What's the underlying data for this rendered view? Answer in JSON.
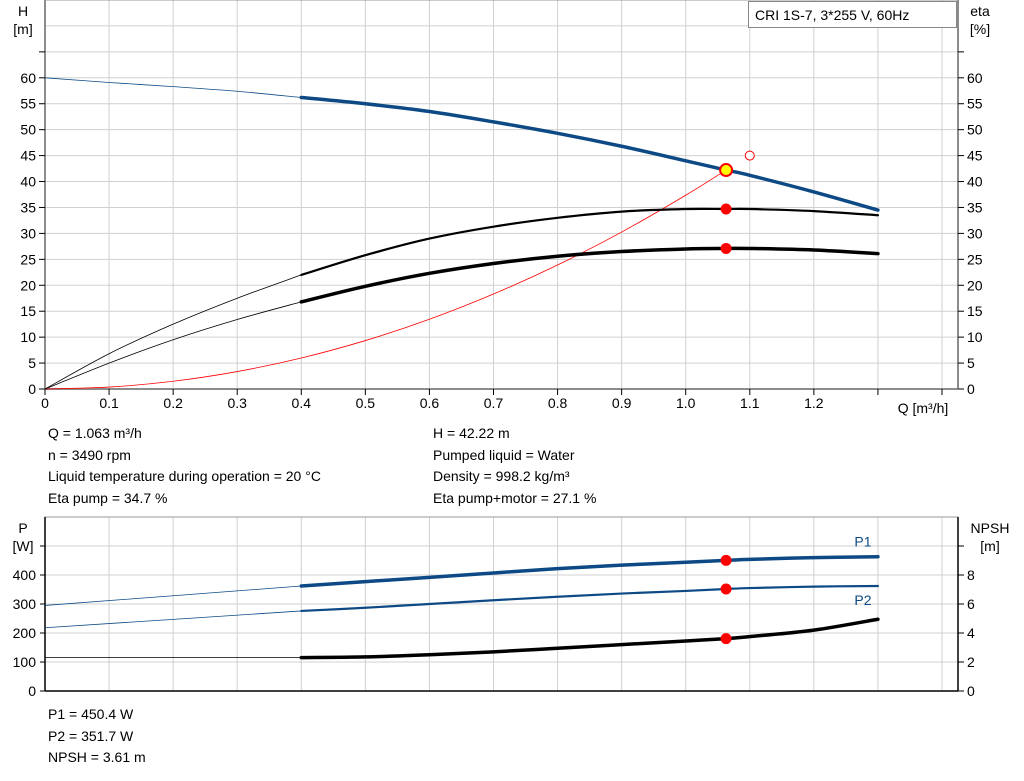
{
  "title": "CRI 1S-7, 3*255 V, 60Hz",
  "colors": {
    "head": "#0d4a85",
    "eta": "#000000",
    "system": "#ff0000",
    "duty_marker": "#ff0000",
    "duty_fill_head": "#ffff00",
    "power": "#0d4a85",
    "npsh": "#000000",
    "grid": "#d0d0d0"
  },
  "top_info_left": [
    "Q = 1.063 m³/h",
    "n = 3490 rpm",
    "Liquid temperature during operation = 20 °C",
    "Eta pump = 34.7 %"
  ],
  "top_info_right": [
    "H = 42.22 m",
    "Pumped liquid = Water",
    "Density = 998.2 kg/m³",
    "Eta pump+motor = 27.1 %"
  ],
  "bottom_info": [
    "P1 = 450.4 W",
    "P2 = 351.7 W",
    "NPSH = 3.61 m"
  ],
  "chart_data": [
    {
      "type": "line",
      "xlabel": "Q [m³/h]",
      "ylabel_left": [
        "H",
        "[m]"
      ],
      "ylabel_right": [
        "eta",
        "[%]"
      ],
      "xlim": [
        0,
        1.4
      ],
      "ylim": [
        0,
        75
      ],
      "x_ticks": [
        "0",
        "0.1",
        "0.2",
        "0.3",
        "0.4",
        "0.5",
        "0.6",
        "0.7",
        "0.8",
        "0.9",
        "1.0",
        "1.1",
        "1.2"
      ],
      "y_ticks": [
        0,
        5,
        10,
        15,
        20,
        25,
        30,
        35,
        40,
        45,
        50,
        55,
        60
      ],
      "grid": true,
      "operating_range": [
        0.4,
        1.3
      ],
      "series": [
        {
          "id": "head",
          "axis": "left",
          "x": [
            0,
            0.1,
            0.2,
            0.3,
            0.4,
            0.5,
            0.6,
            0.7,
            0.8,
            0.9,
            1.0,
            1.063,
            1.1,
            1.2,
            1.3
          ],
          "y": [
            60,
            59.1,
            58.3,
            57.4,
            56.2,
            55,
            53.5,
            51.5,
            49.3,
            46.8,
            44,
            42.22,
            41.2,
            38,
            34.5
          ]
        },
        {
          "id": "eta-pump",
          "axis": "right",
          "x": [
            0,
            0.1,
            0.2,
            0.3,
            0.4,
            0.5,
            0.6,
            0.7,
            0.8,
            0.9,
            1.0,
            1.063,
            1.1,
            1.2,
            1.3
          ],
          "y": [
            0,
            6.8,
            12.5,
            17.5,
            22,
            25.8,
            29,
            31.3,
            33,
            34.2,
            34.7,
            34.7,
            34.7,
            34.3,
            33.5
          ]
        },
        {
          "id": "eta-pump-motor",
          "axis": "right",
          "x": [
            0,
            0.1,
            0.2,
            0.3,
            0.4,
            0.5,
            0.6,
            0.7,
            0.8,
            0.9,
            1.0,
            1.063,
            1.1,
            1.2,
            1.3
          ],
          "y": [
            0,
            5,
            9.5,
            13.4,
            16.8,
            19.8,
            22.3,
            24.2,
            25.6,
            26.5,
            27,
            27.1,
            27.1,
            26.8,
            26.1
          ]
        },
        {
          "id": "system-curve",
          "axis": "left",
          "x": [
            0,
            0.1,
            0.2,
            0.3,
            0.4,
            0.5,
            0.6,
            0.7,
            0.8,
            0.9,
            1.0,
            1.063
          ],
          "y": [
            0,
            0.37,
            1.49,
            3.36,
            5.98,
            9.34,
            13.45,
            18.31,
            23.91,
            30.26,
            37.36,
            42.22
          ]
        }
      ],
      "duty_points": [
        {
          "series": "head",
          "x": 1.063,
          "y": 42.22
        },
        {
          "series": "eta-pump",
          "x": 1.063,
          "y": 34.7
        },
        {
          "series": "eta-pump-motor",
          "x": 1.063,
          "y": 27.1
        }
      ],
      "requested_point": {
        "x": 1.1,
        "y": 45
      }
    },
    {
      "type": "line",
      "ylabel_left": [
        "P",
        "[W]"
      ],
      "ylabel_right": [
        "NPSH",
        "[m]"
      ],
      "xlim": [
        0,
        1.4
      ],
      "ylim_left": [
        0,
        600
      ],
      "ylim_right": [
        0,
        12
      ],
      "y_ticks_left": [
        0,
        100,
        200,
        300,
        400
      ],
      "y_ticks_right": [
        0,
        2,
        4,
        6,
        8
      ],
      "grid": true,
      "series": [
        {
          "id": "p1",
          "name": "P1",
          "axis": "left",
          "x": [
            0,
            0.4,
            0.5,
            0.6,
            0.7,
            0.8,
            0.9,
            1.0,
            1.063,
            1.1,
            1.2,
            1.3
          ],
          "y": [
            295,
            362,
            377,
            392,
            407,
            422,
            434,
            444,
            450.4,
            454,
            460,
            463
          ]
        },
        {
          "id": "p2",
          "name": "P2",
          "axis": "left",
          "x": [
            0,
            0.4,
            0.5,
            0.6,
            0.7,
            0.8,
            0.9,
            1.0,
            1.063,
            1.1,
            1.2,
            1.3
          ],
          "y": [
            218,
            276,
            287,
            300,
            313,
            325,
            336,
            345,
            351.7,
            355,
            360,
            362
          ]
        },
        {
          "id": "npsh",
          "axis": "right",
          "x": [
            0,
            0.4,
            0.5,
            0.6,
            0.7,
            0.8,
            0.9,
            1.0,
            1.063,
            1.1,
            1.2,
            1.3
          ],
          "y": [
            2.3,
            2.3,
            2.35,
            2.5,
            2.7,
            2.95,
            3.2,
            3.45,
            3.61,
            3.75,
            4.2,
            4.95
          ]
        }
      ],
      "duty_points": [
        {
          "series": "p1",
          "x": 1.063,
          "y": 450.4
        },
        {
          "series": "p2",
          "x": 1.063,
          "y": 351.7
        },
        {
          "series": "npsh",
          "x": 1.063,
          "y": 3.61
        }
      ]
    }
  ]
}
